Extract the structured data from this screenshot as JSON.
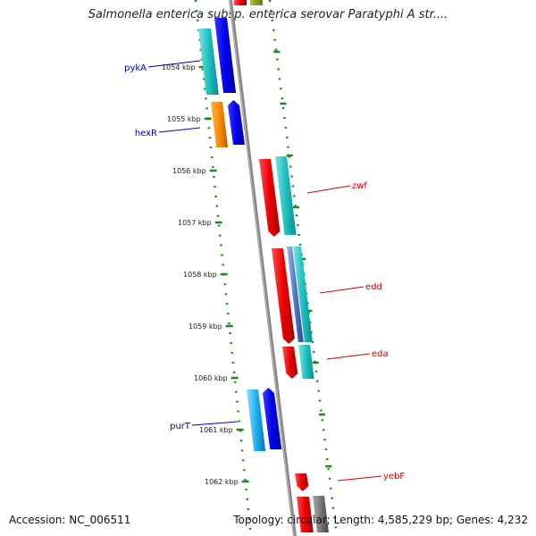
{
  "title": "Salmonella enterica subsp. enterica serovar Paratyphi A str....",
  "footer": {
    "accession": "Accession: NC_006511",
    "topology": "Topology: circular; Length: 4,585,229 bp; Genes: 4,232"
  },
  "colors": {
    "tick": "#1a8a1a",
    "backbone": "#888888",
    "forward_label": "#0000bb",
    "reverse_label": "#cc0000"
  },
  "ticks": [
    {
      "label": "1054 kbp"
    },
    {
      "label": "1055 kbp"
    },
    {
      "label": "1056 kbp"
    },
    {
      "label": "1057 kbp"
    },
    {
      "label": "1058 kbp"
    },
    {
      "label": "1059 kbp"
    },
    {
      "label": "1060 kbp"
    },
    {
      "label": "1061 kbp"
    },
    {
      "label": "1062 kbp"
    }
  ],
  "gene_labels": [
    {
      "name": "pykA",
      "strand": "forward"
    },
    {
      "name": "hexR",
      "strand": "forward"
    },
    {
      "name": "zwf",
      "strand": "reverse"
    },
    {
      "name": "edd",
      "strand": "reverse"
    },
    {
      "name": "eda",
      "strand": "reverse"
    },
    {
      "name": "purT",
      "strand": "forward"
    },
    {
      "name": "yebF",
      "strand": "reverse"
    }
  ]
}
